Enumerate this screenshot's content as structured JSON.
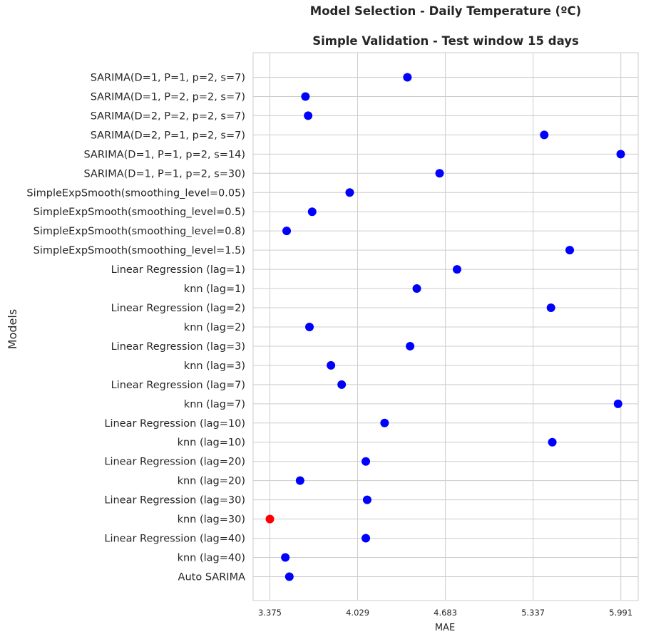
{
  "chart_data": {
    "type": "scatter",
    "suptitle": "Model Selection - Daily Temperature (ºC)",
    "title": "Simple Validation - Test window 15 days",
    "xlabel": "MAE",
    "ylabel": "Models",
    "xlim": [
      3.25,
      6.12
    ],
    "xticks": [
      "3.375",
      "4.029",
      "4.683",
      "5.337",
      "5.991"
    ],
    "grid": true,
    "colors": {
      "default": "#0000ff",
      "best": "#ff0000",
      "grid": "#cccccc",
      "spine": "#cccccc"
    },
    "categories": [
      "SARIMA(D=1, P=1, p=2, s=7)",
      "SARIMA(D=1, P=2, p=2, s=7)",
      "SARIMA(D=2, P=2, p=2, s=7)",
      "SARIMA(D=2, P=1, p=2, s=7)",
      "SARIMA(D=1, P=1, p=2, s=14)",
      "SARIMA(D=1, P=1, p=2, s=30)",
      "SimpleExpSmooth(smoothing_level=0.05)",
      "SimpleExpSmooth(smoothing_level=0.5)",
      "SimpleExpSmooth(smoothing_level=0.8)",
      "SimpleExpSmooth(smoothing_level=1.5)",
      "Linear Regression (lag=1)",
      "knn (lag=1)",
      "Linear Regression (lag=2)",
      "knn (lag=2)",
      "Linear Regression (lag=3)",
      "knn (lag=3)",
      "Linear Regression (lag=7)",
      "knn (lag=7)",
      "Linear Regression (lag=10)",
      "knn (lag=10)",
      "Linear Regression (lag=20)",
      "knn (lag=20)",
      "Linear Regression (lag=30)",
      "knn (lag=30)",
      "Linear Regression (lag=40)",
      "knn (lag=40)",
      "Auto SARIMA"
    ],
    "values": [
      4.4,
      3.64,
      3.66,
      5.42,
      5.99,
      4.64,
      3.97,
      3.69,
      3.5,
      5.61,
      4.77,
      4.47,
      5.47,
      3.67,
      4.42,
      3.83,
      3.91,
      5.97,
      4.23,
      5.48,
      4.09,
      3.6,
      4.1,
      3.375,
      4.09,
      3.49,
      3.52
    ],
    "best_index": 23
  }
}
